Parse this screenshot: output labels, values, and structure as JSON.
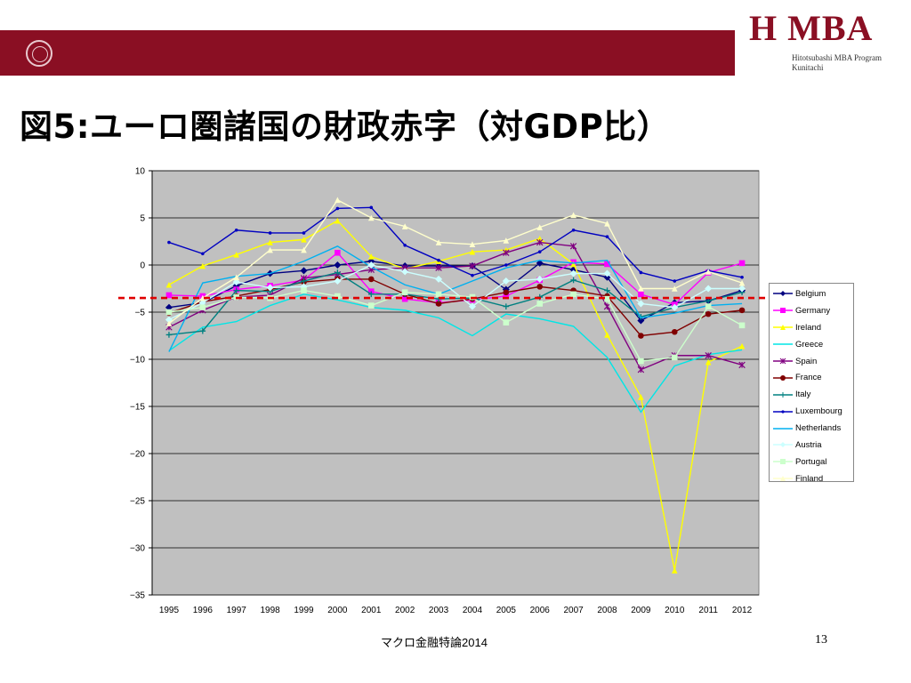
{
  "header": {
    "logo_text": "H MBA",
    "logo_subtitle": "Hitotsubashi MBA Program Kunitachi",
    "band_color": "#8a0f23"
  },
  "slide": {
    "title": "図5:ユーロ圏諸国の財政赤字（対GDP比）",
    "footer": "マクロ金融特論2014",
    "page_number": "13"
  },
  "chart_data": {
    "type": "line",
    "title": "",
    "xlabel": "",
    "ylabel": "",
    "ylim": [
      -35,
      10
    ],
    "yticks": [
      10,
      5,
      0,
      -5,
      -10,
      -15,
      -20,
      -25,
      -30,
      -35
    ],
    "grid": true,
    "legend_position": "right",
    "plot_background": "#c0c0c0",
    "reference_line": {
      "value": -3.5,
      "style": "dashed",
      "color": "#e00000"
    },
    "categories": [
      "1995",
      "1996",
      "1997",
      "1998",
      "1999",
      "2000",
      "2001",
      "2002",
      "2003",
      "2004",
      "2005",
      "2006",
      "2007",
      "2008",
      "2009",
      "2010",
      "2011",
      "2012"
    ],
    "series": [
      {
        "name": "Belgium",
        "color": "#000080",
        "marker": "diamond",
        "values": [
          -4.5,
          -4.0,
          -2.2,
          -0.9,
          -0.6,
          0.0,
          0.4,
          -0.1,
          -0.1,
          -0.1,
          -2.6,
          0.2,
          -0.5,
          -1.3,
          -5.9,
          -4.0,
          -3.8,
          -2.7
        ]
      },
      {
        "name": "Germany",
        "color": "#ff00ff",
        "marker": "square",
        "values": [
          -3.2,
          -3.3,
          -2.6,
          -2.2,
          -1.6,
          1.3,
          -2.8,
          -3.6,
          -4.0,
          -3.7,
          -3.3,
          -1.6,
          0.3,
          0.1,
          -3.1,
          -4.2,
          -0.8,
          0.2
        ]
      },
      {
        "name": "Ireland",
        "color": "#ffff00",
        "marker": "triangle",
        "values": [
          -2.1,
          -0.1,
          1.1,
          2.4,
          2.7,
          4.7,
          0.9,
          -0.4,
          0.4,
          1.4,
          1.6,
          2.8,
          0.1,
          -7.4,
          -14.0,
          -32.4,
          -10.3,
          -8.6
        ]
      },
      {
        "name": "Greece",
        "color": "#00e6e6",
        "marker": "none",
        "values": [
          -9.1,
          -6.6,
          -6.0,
          -4.3,
          -3.1,
          -3.7,
          -4.5,
          -4.8,
          -5.6,
          -7.5,
          -5.2,
          -5.7,
          -6.5,
          -9.8,
          -15.6,
          -10.7,
          -9.5,
          -9.0
        ]
      },
      {
        "name": "Spain",
        "color": "#800080",
        "marker": "star",
        "values": [
          -6.6,
          -4.8,
          -3.4,
          -3.2,
          -1.4,
          -1.0,
          -0.5,
          -0.3,
          -0.3,
          -0.1,
          1.3,
          2.4,
          2.0,
          -4.4,
          -11.1,
          -9.6,
          -9.6,
          -10.6
        ]
      },
      {
        "name": "France",
        "color": "#800000",
        "marker": "circle",
        "values": [
          -5.1,
          -3.9,
          -3.3,
          -2.6,
          -1.8,
          -1.5,
          -1.5,
          -3.1,
          -4.1,
          -3.6,
          -2.9,
          -2.3,
          -2.7,
          -3.3,
          -7.5,
          -7.1,
          -5.2,
          -4.8
        ]
      },
      {
        "name": "Italy",
        "color": "#008080",
        "marker": "plus",
        "values": [
          -7.4,
          -7.0,
          -2.7,
          -2.8,
          -1.7,
          -0.8,
          -3.1,
          -3.1,
          -3.6,
          -3.5,
          -4.4,
          -3.4,
          -1.6,
          -2.7,
          -5.5,
          -4.5,
          -3.8,
          -2.9
        ]
      },
      {
        "name": "Luxembourg",
        "color": "#0000c0",
        "marker": "dot",
        "values": [
          2.4,
          1.2,
          3.7,
          3.4,
          3.4,
          6.0,
          6.1,
          2.1,
          0.5,
          -1.1,
          0.0,
          1.4,
          3.7,
          3.0,
          -0.8,
          -1.7,
          -0.6,
          -1.3
        ]
      },
      {
        "name": "Netherlands",
        "color": "#00b0f0",
        "marker": "none",
        "values": [
          -9.2,
          -1.9,
          -1.2,
          -0.9,
          0.4,
          2.0,
          -0.2,
          -2.1,
          -3.1,
          -1.7,
          -0.3,
          0.5,
          0.2,
          0.5,
          -5.6,
          -5.1,
          -4.3,
          -4.1
        ]
      },
      {
        "name": "Austria",
        "color": "#ccffff",
        "marker": "diamond",
        "values": [
          -5.8,
          -4.0,
          -1.8,
          -2.4,
          -2.3,
          -1.7,
          0.0,
          -0.7,
          -1.5,
          -4.4,
          -1.7,
          -1.5,
          -0.9,
          -0.9,
          -4.1,
          -4.5,
          -2.5,
          -2.5
        ]
      },
      {
        "name": "Portugal",
        "color": "#ccffcc",
        "marker": "square",
        "values": [
          -5.0,
          -4.5,
          -3.4,
          -3.5,
          -2.7,
          -3.3,
          -4.3,
          -2.9,
          -3.1,
          -3.4,
          -6.1,
          -4.1,
          -3.1,
          -3.6,
          -10.2,
          -9.8,
          -4.4,
          -6.4
        ]
      },
      {
        "name": "Finland",
        "color": "#ffffcc",
        "marker": "triangle",
        "values": [
          -6.2,
          -3.5,
          -1.3,
          1.6,
          1.6,
          6.9,
          5.0,
          4.1,
          2.4,
          2.2,
          2.6,
          4.0,
          5.3,
          4.4,
          -2.5,
          -2.5,
          -0.7,
          -1.9
        ]
      }
    ]
  }
}
